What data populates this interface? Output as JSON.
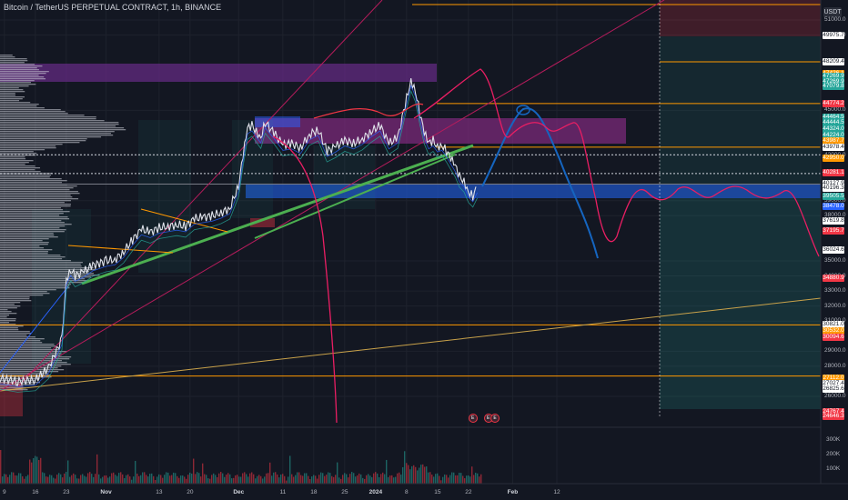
{
  "header": {
    "title": "Bitcoin / TetherUS PERPETUAL CONTRACT, 1h, BINANCE"
  },
  "currency": "USDT",
  "price_ticks": [
    {
      "label": "51000.0",
      "v": 51000
    },
    {
      "label": "50000.0",
      "v": 50000
    },
    {
      "label": "45000.0",
      "v": 45000
    },
    {
      "label": "42000.0",
      "v": 42000
    },
    {
      "label": "39000.0",
      "v": 39000
    },
    {
      "label": "38000.0",
      "v": 38000
    },
    {
      "label": "35000.0",
      "v": 35000
    },
    {
      "label": "34000.0",
      "v": 34000
    },
    {
      "label": "33000.0",
      "v": 33000
    },
    {
      "label": "32000.0",
      "v": 32000
    },
    {
      "label": "31000.0",
      "v": 31000
    },
    {
      "label": "29000.0",
      "v": 29000
    },
    {
      "label": "28000.0",
      "v": 28000
    },
    {
      "label": "26000.0",
      "v": 26000
    }
  ],
  "price_labels": [
    {
      "label": "49975.7",
      "v": 49975.7,
      "bg": "#ffffff",
      "fg": "#131722"
    },
    {
      "label": "48209.4",
      "v": 48209.4,
      "bg": "#ffffff",
      "fg": "#131722"
    },
    {
      "label": "47426.1",
      "v": 47426.1,
      "bg": "#ff9800",
      "fg": "#ffffff"
    },
    {
      "label": "47269.9",
      "v": 47269.9,
      "bg": "#26a69a",
      "fg": "#ffffff"
    },
    {
      "label": "47269.9",
      "v": 46900,
      "bg": "#26a69a",
      "fg": "#ffffff"
    },
    {
      "label": "47079.8",
      "v": 46600,
      "bg": "#26a69a",
      "fg": "#ffffff"
    },
    {
      "label": "44774.2",
      "v": 45450,
      "bg": "#f23645",
      "fg": "#ffffff"
    },
    {
      "label": "44464.5",
      "v": 44550,
      "bg": "#26a69a",
      "fg": "#ffffff"
    },
    {
      "label": "44444.5",
      "v": 44150,
      "bg": "#26a69a",
      "fg": "#ffffff"
    },
    {
      "label": "44324.0",
      "v": 43750,
      "bg": "#26a69a",
      "fg": "#ffffff"
    },
    {
      "label": "44224.0",
      "v": 43350,
      "bg": "#26a69a",
      "fg": "#ffffff"
    },
    {
      "label": "43987.7",
      "v": 42950,
      "bg": "#ff9800",
      "fg": "#ffffff"
    },
    {
      "label": "43978.4",
      "v": 42550,
      "bg": "#ffffff",
      "fg": "#131722"
    },
    {
      "label": "42950.0",
      "v": 41850,
      "bg": "#ff9800",
      "fg": "#ffffff"
    },
    {
      "label": "40281.1",
      "v": 40850,
      "bg": "#f23645",
      "fg": "#ffffff"
    },
    {
      "label": "40127.9",
      "v": 40150,
      "bg": "#ffffff",
      "fg": "#131722"
    },
    {
      "label": "40196.3",
      "v": 39850,
      "bg": "#ffffff",
      "fg": "#131722"
    },
    {
      "label": "39505.5",
      "v": 39300,
      "bg": "#26a69a",
      "fg": "#ffffff"
    },
    {
      "label": "38478.0",
      "v": 38600,
      "bg": "#2962ff",
      "fg": "#ffffff"
    },
    {
      "label": "37619.8",
      "v": 37650,
      "bg": "#ffffff",
      "fg": "#131722"
    },
    {
      "label": "37195.7",
      "v": 37000,
      "bg": "#f23645",
      "fg": "#ffffff"
    },
    {
      "label": "36024.6",
      "v": 35750,
      "bg": "#ffffff",
      "fg": "#131722"
    },
    {
      "label": "34880.9",
      "v": 33850,
      "bg": "#f23645",
      "fg": "#ffffff"
    },
    {
      "label": "30821.0",
      "v": 30750,
      "bg": "#ffffff",
      "fg": "#131722"
    },
    {
      "label": "30532.0",
      "v": 30350,
      "bg": "#ff9800",
      "fg": "#ffffff"
    },
    {
      "label": "30094.6",
      "v": 29950,
      "bg": "#f23645",
      "fg": "#ffffff"
    },
    {
      "label": "27112.0",
      "v": 27200,
      "bg": "#ff9800",
      "fg": "#ffffff"
    },
    {
      "label": "27027.4",
      "v": 26850,
      "bg": "#ffffff",
      "fg": "#131722"
    },
    {
      "label": "26825.6",
      "v": 26500,
      "bg": "#ffffff",
      "fg": "#131722"
    },
    {
      "label": "24767.4",
      "v": 24950,
      "bg": "#f23645",
      "fg": "#ffffff"
    },
    {
      "label": "24646.3",
      "v": 24650,
      "bg": "#f23645",
      "fg": "#ffffff"
    }
  ],
  "volume_ticks": [
    {
      "label": "300K",
      "v": 300000
    },
    {
      "label": "200K",
      "v": 200000
    },
    {
      "label": "100K",
      "v": 100000
    }
  ],
  "time_ticks": [
    {
      "label": "9",
      "d": -13,
      "strong": false
    },
    {
      "label": "16",
      "d": -6,
      "strong": false
    },
    {
      "label": "23",
      "d": 1,
      "strong": false
    },
    {
      "label": "Nov",
      "d": 10,
      "strong": true
    },
    {
      "label": "13",
      "d": 22,
      "strong": false
    },
    {
      "label": "20",
      "d": 29,
      "strong": false
    },
    {
      "label": "Dec",
      "d": 40,
      "strong": true
    },
    {
      "label": "11",
      "d": 50,
      "strong": false
    },
    {
      "label": "18",
      "d": 57,
      "strong": false
    },
    {
      "label": "25",
      "d": 64,
      "strong": false
    },
    {
      "label": "2024",
      "d": 71,
      "strong": true
    },
    {
      "label": "8",
      "d": 78,
      "strong": false
    },
    {
      "label": "15",
      "d": 85,
      "strong": false
    },
    {
      "label": "22",
      "d": 92,
      "strong": false
    },
    {
      "label": "Feb",
      "d": 102,
      "strong": true
    },
    {
      "label": "12",
      "d": 112,
      "strong": false
    }
  ],
  "events": [
    {
      "glyph": "E",
      "d": 93
    },
    {
      "glyph": "E",
      "d": 96.5
    },
    {
      "glyph": "E",
      "d": 98
    }
  ],
  "colors": {
    "bg": "#131722",
    "up": "#26a69a",
    "down": "#f23645",
    "orange": "#ff9800",
    "blue": "#1e5ab4",
    "purple": "#6a2c8a",
    "pink": "#e91e63",
    "green_line": "#4caf50",
    "forecast_blue": "#1565c0"
  },
  "chart_data": {
    "type": "line",
    "title": "Bitcoin / TetherUS PERPETUAL CONTRACT, 1h, BINANCE",
    "xlabel": "",
    "ylabel": "",
    "ylim": [
      23500,
      52500
    ],
    "x_unit": "days from 2023-10-22",
    "series": [
      {
        "x": [
          -18,
          -14,
          -10,
          -6,
          -3,
          0,
          1,
          2,
          3,
          5,
          7,
          10,
          12,
          14,
          16,
          18,
          20,
          22,
          24,
          26,
          28,
          30,
          32,
          34,
          36,
          38,
          40,
          41,
          42,
          43,
          44,
          45,
          46,
          48,
          50,
          52,
          54,
          56,
          58,
          60,
          62,
          64,
          66,
          68,
          70,
          72,
          74,
          76,
          78,
          79,
          80,
          81,
          82,
          83,
          84,
          85,
          86,
          87,
          88,
          89,
          90,
          91,
          92,
          93,
          94
        ],
        "values": [
          27500,
          27200,
          27000,
          27100,
          27900,
          29800,
          33800,
          34400,
          34000,
          34300,
          34700,
          35000,
          35100,
          35600,
          36400,
          37100,
          36900,
          37200,
          37300,
          37400,
          37300,
          37800,
          37900,
          38000,
          38200,
          38500,
          40000,
          42000,
          43800,
          44000,
          43600,
          43200,
          44200,
          43500,
          42700,
          42800,
          42500,
          43400,
          43700,
          42300,
          42600,
          43000,
          42800,
          43100,
          43600,
          44000,
          42800,
          43200,
          45800,
          47000,
          46300,
          44800,
          43500,
          42800,
          43000,
          42600,
          42700,
          42300,
          41800,
          41300,
          40600,
          40300,
          39600,
          39300,
          39900
        ]
      }
    ],
    "horizontal_levels": [
      48220,
      45450,
      42550,
      42050,
      40800,
      40100,
      30750,
      27350
    ],
    "volume_ticks": [
      "300K",
      "200K",
      "100K"
    ]
  }
}
